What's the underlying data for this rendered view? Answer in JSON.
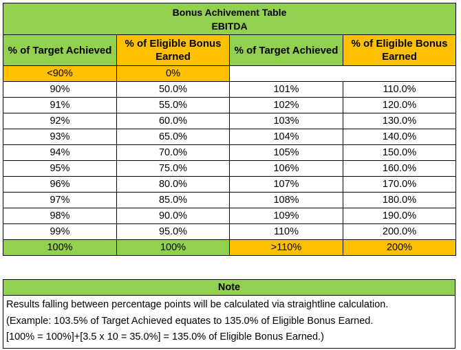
{
  "table": {
    "title": "Bonus Achivement Table",
    "subtitle": "EBITDA",
    "headers": [
      "% of Target Achieved",
      "% of Eligible Bonus Earned",
      "% of Target Achieved",
      "% of Eligible Bonus Earned"
    ],
    "first_row": [
      "<90%",
      "0%"
    ],
    "rows": [
      [
        "90%",
        "50.0%",
        "101%",
        "110.0%"
      ],
      [
        "91%",
        "55.0%",
        "102%",
        "120.0%"
      ],
      [
        "92%",
        "60.0%",
        "103%",
        "130.0%"
      ],
      [
        "93%",
        "65.0%",
        "104%",
        "140.0%"
      ],
      [
        "94%",
        "70.0%",
        "105%",
        "150.0%"
      ],
      [
        "95%",
        "75.0%",
        "106%",
        "160.0%"
      ],
      [
        "96%",
        "80.0%",
        "107%",
        "170.0%"
      ],
      [
        "97%",
        "85.0%",
        "108%",
        "180.0%"
      ],
      [
        "98%",
        "90.0%",
        "109%",
        "190.0%"
      ],
      [
        "99%",
        "95.0%",
        "110%",
        "200.0%"
      ]
    ],
    "last_row": [
      "100%",
      "100%",
      ">110%",
      "200%"
    ]
  },
  "note": {
    "title": "Note",
    "lines": [
      "Results falling between percentage points will be calculated via straightline calculation.",
      "(Example: 103.5% of Target Achieved equates to 135.0% of Eligible Bonus Earned.",
      "[100% = 100%]+[3.5 x 10 = 35.0%] = 135.0% of Eligible Bonus Earned.)"
    ]
  },
  "colors": {
    "green": "#92d050",
    "orange": "#ffc000",
    "border": "#000000"
  }
}
